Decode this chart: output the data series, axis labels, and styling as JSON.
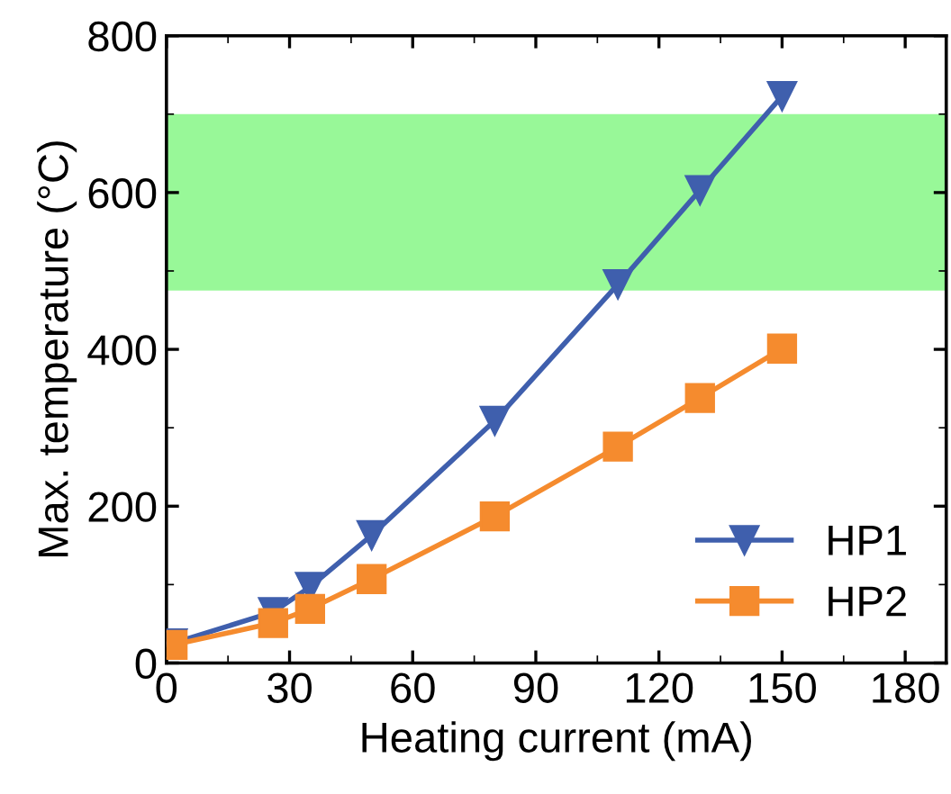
{
  "chart_data": {
    "type": "line",
    "xlabel": "Heating current (mA)",
    "ylabel": "Max. temperature (°C)",
    "xlim": [
      0,
      190
    ],
    "xticks": [
      0,
      30,
      60,
      90,
      120,
      150,
      180
    ],
    "ylim": [
      0,
      800
    ],
    "yticks": [
      0,
      200,
      400,
      600,
      800
    ],
    "legend": "bottom right",
    "grid": false,
    "bands": [
      {
        "axis": "y",
        "from": 475,
        "to": 700,
        "color": "#98f898"
      }
    ],
    "series": [
      {
        "name": "HP1",
        "color": "#3f5fad",
        "marker": "triangle",
        "x": [
          1.5,
          26,
          35,
          50,
          80,
          110,
          130,
          150
        ],
        "values": [
          25,
          65,
          97,
          163,
          309,
          483,
          603,
          723
        ]
      },
      {
        "name": "HP2",
        "color": "#f58b2e",
        "marker": "square",
        "x": [
          1.5,
          26,
          35,
          50,
          80,
          110,
          130,
          150
        ],
        "values": [
          23,
          51,
          69,
          107,
          187,
          276,
          338,
          401
        ]
      }
    ]
  }
}
